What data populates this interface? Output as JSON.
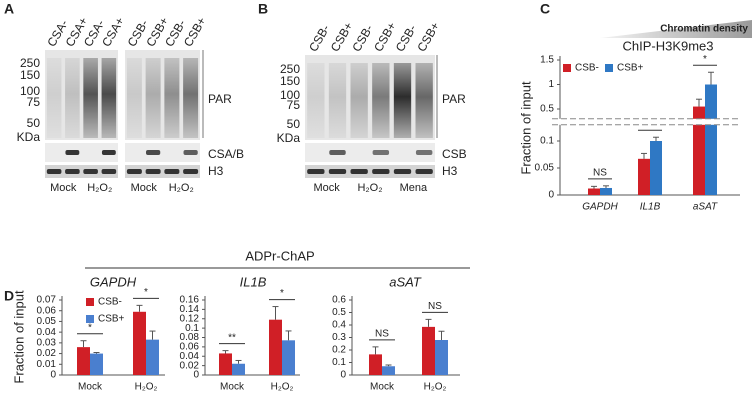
{
  "panel_labels": [
    "A",
    "B",
    "C",
    "D"
  ],
  "panel_a": {
    "membranes": [
      {
        "lanes": [
          "CSA-",
          "CSA+",
          "CSA-",
          "CSA+"
        ],
        "treatments": [
          "Mock",
          "H₂O₂"
        ]
      },
      {
        "lanes": [
          "CSB-",
          "CSB+",
          "CSB-",
          "CSB+"
        ],
        "treatments": [
          "Mock",
          "H₂O₂"
        ]
      }
    ],
    "markers": [
      "250",
      "150",
      "100",
      "75",
      "50"
    ],
    "unit": "KDa",
    "bands": [
      "PAR",
      "CSA/B",
      "H3"
    ]
  },
  "panel_b": {
    "membranes": [
      {
        "lanes": [
          "CSB-",
          "CSB+",
          "CSB-",
          "CSB+",
          "CSB-",
          "CSB+"
        ],
        "treatments": [
          "Mock",
          "H₂O₂",
          "Mena"
        ]
      }
    ],
    "markers": [
      "250",
      "150",
      "100",
      "75",
      "50"
    ],
    "unit": "KDa",
    "bands": [
      "PAR",
      "CSB",
      "H3"
    ]
  },
  "panel_d_title": "ADPr-ChAP",
  "chart_data": [
    {
      "type": "bar",
      "title": "ChIP-H3K9me3",
      "annotation": "Chromatin density",
      "y_label": "Fraction of input",
      "categories": [
        "GAPDH",
        "IL1B",
        "aSAT"
      ],
      "series": [
        {
          "name": "CSB-",
          "color": "#d01f26",
          "values": [
            0.012,
            0.067,
            0.55
          ],
          "errors": [
            0.004,
            0.01,
            0.15
          ]
        },
        {
          "name": "CSB+",
          "color": "#2f78c4",
          "values": [
            0.013,
            0.1,
            1.0
          ],
          "errors": [
            0.004,
            0.007,
            0.25
          ]
        }
      ],
      "significance": [
        "NS",
        "*",
        "*"
      ],
      "ylim": [
        0,
        1.5
      ],
      "ybreak": [
        0.13,
        0.3
      ],
      "yticks": [
        0,
        0.05,
        0.1,
        0.5,
        1,
        1.5
      ]
    },
    {
      "type": "bar",
      "title": "GAPDH",
      "y_label": "Fraction of input",
      "categories": [
        "Mock",
        "H₂O₂"
      ],
      "series": [
        {
          "name": "CSB-",
          "color": "#d01f26",
          "values": [
            0.026,
            0.059
          ],
          "errors": [
            0.006,
            0.006
          ]
        },
        {
          "name": "CSB+",
          "color": "#4a7fcf",
          "values": [
            0.02,
            0.033
          ],
          "errors": [
            0.001,
            0.008
          ]
        }
      ],
      "significance": [
        "*",
        "*"
      ],
      "ylim": [
        0,
        0.07
      ],
      "yticks": [
        0,
        0.01,
        0.02,
        0.03,
        0.04,
        0.05,
        0.06,
        0.07
      ]
    },
    {
      "type": "bar",
      "title": "IL1B",
      "categories": [
        "Mock",
        "H₂O₂"
      ],
      "series": [
        {
          "color": "#d01f26",
          "values": [
            0.046,
            0.118
          ],
          "errors": [
            0.006,
            0.028
          ]
        },
        {
          "color": "#4a7fcf",
          "values": [
            0.024,
            0.074
          ],
          "errors": [
            0.007,
            0.02
          ]
        }
      ],
      "significance": [
        "**",
        "*"
      ],
      "ylim": [
        0,
        0.16
      ],
      "yticks": [
        0,
        0.02,
        0.04,
        0.06,
        0.08,
        0.1,
        0.12,
        0.14,
        0.16
      ]
    },
    {
      "type": "bar",
      "title": "aSAT",
      "categories": [
        "Mock",
        "H₂O₂"
      ],
      "series": [
        {
          "color": "#d01f26",
          "values": [
            0.165,
            0.385
          ],
          "errors": [
            0.06,
            0.06
          ]
        },
        {
          "color": "#4a7fcf",
          "values": [
            0.07,
            0.28
          ],
          "errors": [
            0.01,
            0.07
          ]
        }
      ],
      "significance": [
        "NS",
        "NS"
      ],
      "ylim": [
        0,
        0.6
      ],
      "yticks": [
        0,
        0.1,
        0.2,
        0.3,
        0.4,
        0.5,
        0.6
      ]
    }
  ]
}
